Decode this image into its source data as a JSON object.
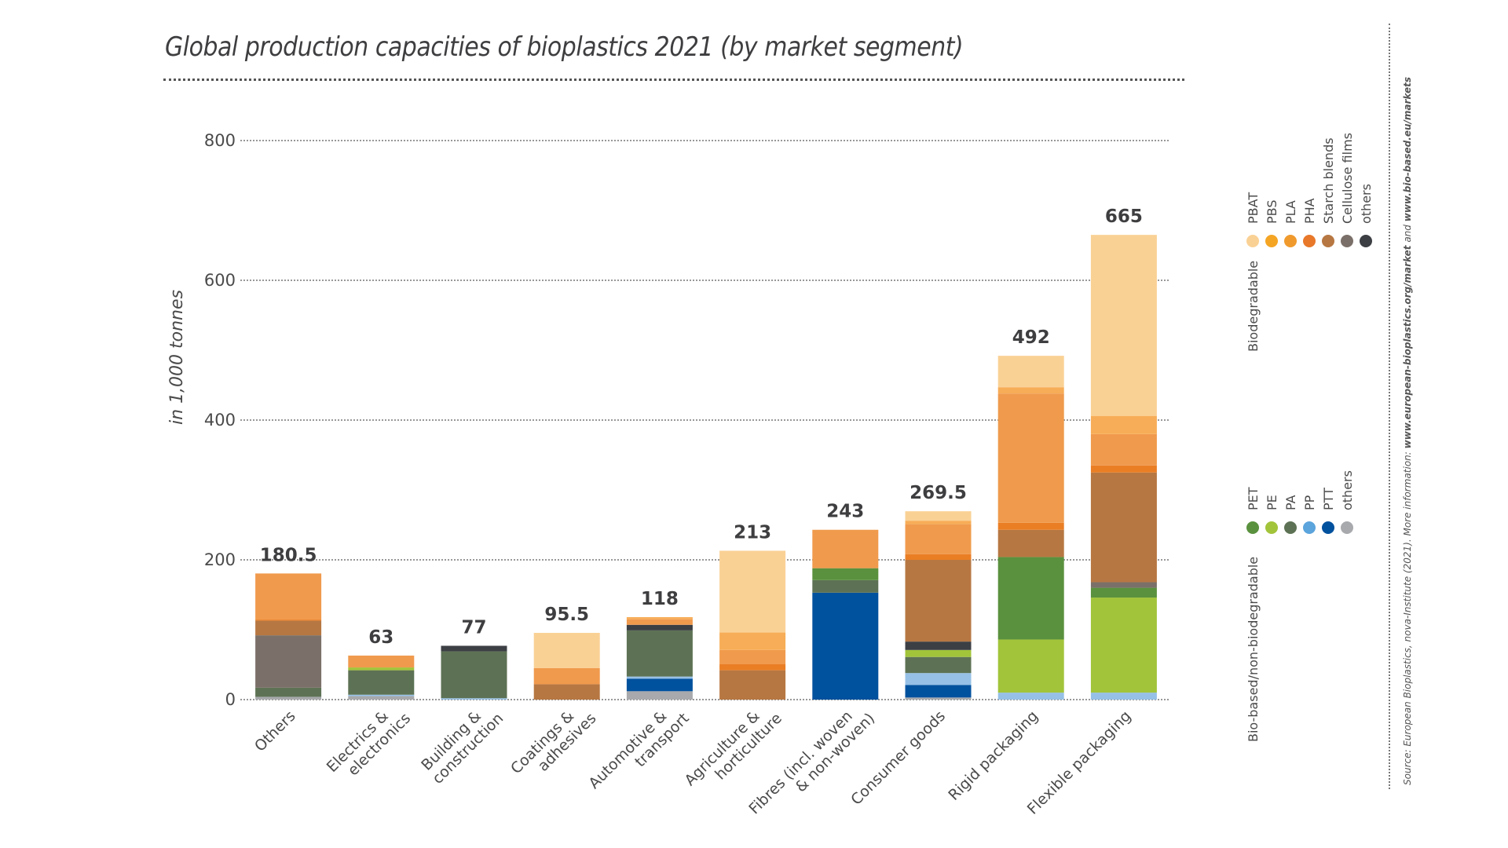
{
  "chart_data": {
    "type": "bar",
    "stacked": true,
    "title": "Global production capacities of bioplastics 2021 (by market segment)",
    "xlabel": "",
    "ylabel": "in 1,000 tonnes",
    "ylim": [
      0,
      800
    ],
    "yticks": [
      0,
      200,
      400,
      600,
      800
    ],
    "grid": true,
    "legend_position": "right",
    "categories": [
      {
        "label": [
          "Others"
        ],
        "total": 180.5,
        "total_label": "180.5"
      },
      {
        "label": [
          "Electrics &",
          "electronics"
        ],
        "total": 63,
        "total_label": "63"
      },
      {
        "label": [
          "Building &",
          "construction"
        ],
        "total": 77,
        "total_label": "77"
      },
      {
        "label": [
          "Coatings &",
          "adhesives"
        ],
        "total": 95.5,
        "total_label": "95.5"
      },
      {
        "label": [
          "Automotive &",
          "transport"
        ],
        "total": 118,
        "total_label": "118"
      },
      {
        "label": [
          "Agriculture &",
          "horticulture"
        ],
        "total": 213,
        "total_label": "213"
      },
      {
        "label": [
          "Fibres (incl. woven",
          "& non-woven)"
        ],
        "total": 243,
        "total_label": "243"
      },
      {
        "label": [
          "Consumer goods"
        ],
        "total": 269.5,
        "total_label": "269.5"
      },
      {
        "label": [
          "Rigid packaging"
        ],
        "total": 492,
        "total_label": "492"
      },
      {
        "label": [
          "Flexible packaging"
        ],
        "total": 665,
        "total_label": "665"
      }
    ],
    "series": [
      {
        "name": "others (non-biodegradable)",
        "group": "non-bio",
        "color": "#a7a9ac",
        "values": [
          4,
          5,
          0,
          0,
          12,
          0,
          0,
          3,
          0,
          0
        ]
      },
      {
        "name": "PTT",
        "group": "non-bio",
        "color": "#00519e",
        "values": [
          0,
          0,
          0,
          0,
          18,
          0,
          153,
          18,
          0,
          0
        ]
      },
      {
        "name": "PP",
        "group": "non-bio",
        "color": "#96c0e6",
        "values": [
          0,
          2,
          2,
          0,
          3,
          0,
          0,
          17,
          10,
          10
        ]
      },
      {
        "name": "PA",
        "group": "non-bio",
        "color": "#5d7254",
        "values": [
          13,
          35,
          67,
          0,
          66,
          0,
          18,
          23,
          0,
          0
        ]
      },
      {
        "name": "PE",
        "group": "non-bio",
        "color": "#a2c43a",
        "values": [
          0,
          4,
          0,
          0,
          0,
          0,
          0,
          10,
          76,
          136
        ]
      },
      {
        "name": "PET",
        "group": "non-bio",
        "color": "#5a913e",
        "values": [
          0,
          0,
          0,
          0,
          0,
          0,
          17,
          0,
          118,
          14
        ]
      },
      {
        "name": "others (biodegradable)",
        "group": "bio",
        "color": "#3c3f44",
        "values": [
          0,
          0,
          8,
          0,
          8,
          0,
          0,
          12,
          0,
          0
        ]
      },
      {
        "name": "Cellulose films",
        "group": "bio",
        "color": "#7b7069",
        "values": [
          75,
          0,
          0,
          0,
          0,
          0,
          0,
          0,
          0,
          8
        ]
      },
      {
        "name": "Starch blends",
        "group": "bio",
        "color": "#b77742",
        "values": [
          21,
          0,
          0,
          22,
          0,
          42,
          0,
          117,
          39,
          157
        ]
      },
      {
        "name": "PHA",
        "group": "bio",
        "color": "#ea7e24",
        "values": [
          1.5,
          0,
          0,
          0,
          0,
          9,
          0,
          8,
          10,
          10
        ]
      },
      {
        "name": "PLA",
        "group": "bio",
        "color": "#f09a4d",
        "values": [
          66,
          17,
          0,
          23,
          8,
          20,
          55,
          43,
          185,
          45
        ]
      },
      {
        "name": "PBS",
        "group": "bio",
        "color": "#f7ad57",
        "values": [
          0,
          0,
          0,
          0,
          3,
          25,
          0,
          5,
          9,
          26
        ]
      },
      {
        "name": "PBAT",
        "group": "bio",
        "color": "#fad195",
        "values": [
          0,
          0,
          0,
          50.5,
          0,
          117,
          0,
          13.5,
          45,
          259
        ]
      }
    ]
  },
  "legend": {
    "biodegradable": {
      "title": "Biodegradable",
      "items": [
        {
          "label": "PBAT",
          "color": "#fad195"
        },
        {
          "label": "PBS",
          "color": "#f5a524"
        },
        {
          "label": "PLA",
          "color": "#f09a2d"
        },
        {
          "label": "PHA",
          "color": "#e8782a"
        },
        {
          "label": "Starch blends",
          "color": "#b77742"
        },
        {
          "label": "Cellulose films",
          "color": "#7b7069"
        },
        {
          "label": "others",
          "color": "#3c3f44"
        }
      ]
    },
    "non_biodegradable": {
      "title": "Bio-based/non-biodegradable",
      "items": [
        {
          "label": "PET",
          "color": "#5a913e"
        },
        {
          "label": "PE",
          "color": "#a2c43a"
        },
        {
          "label": "PA",
          "color": "#5d7254"
        },
        {
          "label": "PP",
          "color": "#5ba4dc"
        },
        {
          "label": "PTT",
          "color": "#00519e"
        },
        {
          "label": "others",
          "color": "#a7a9ac"
        }
      ]
    }
  },
  "source": {
    "prefix": "Source: European Bioplastics, nova-Institute (2021). More information: ",
    "link1": "www.european-bioplastics.org/market",
    "and": " and ",
    "link2": "www.bio-based.eu/markets"
  }
}
